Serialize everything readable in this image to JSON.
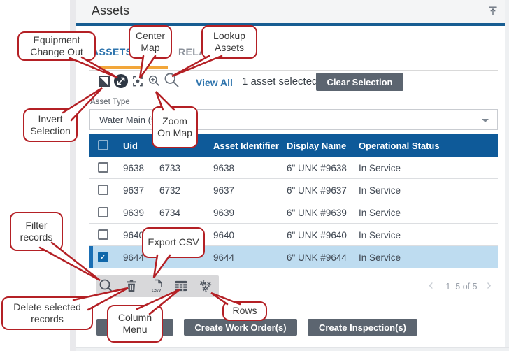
{
  "panel": {
    "title": "Assets"
  },
  "tabs": [
    {
      "label": "ASSETS"
    },
    {
      "label": "RELATED"
    }
  ],
  "toolbar": {
    "icons": [
      "invert-selection",
      "equipment-change-out",
      "center-map",
      "zoom-on-map",
      "lookup-assets"
    ],
    "view_all_label": "View All",
    "selection_status": "1 asset selected",
    "clear_selection_label": "Clear Selection"
  },
  "asset_type": {
    "label": "Asset Type",
    "value": "Water Main (5)"
  },
  "table": {
    "columns": [
      "Uid",
      "",
      "Asset Identifier",
      "Display Name",
      "Operational Status"
    ],
    "check_glyph": "✓",
    "rows": [
      {
        "uid": "9638",
        "col2": "6733",
        "asset_identifier": "9638",
        "display_name": "6\" UNK #9638",
        "status": "In Service",
        "checked": false,
        "selected": false
      },
      {
        "uid": "9637",
        "col2": "6732",
        "asset_identifier": "9637",
        "display_name": "6\" UNK #9637",
        "status": "In Service",
        "checked": false,
        "selected": false
      },
      {
        "uid": "9639",
        "col2": "6734",
        "asset_identifier": "9639",
        "display_name": "6\" UNK #9639",
        "status": "In Service",
        "checked": false,
        "selected": false
      },
      {
        "uid": "9640",
        "col2": "",
        "asset_identifier": "9640",
        "display_name": "6\" UNK #9640",
        "status": "In Service",
        "checked": false,
        "selected": false
      },
      {
        "uid": "9644",
        "col2": "",
        "asset_identifier": "9644",
        "display_name": "6\" UNK #9644",
        "status": "In Service",
        "checked": true,
        "selected": true
      }
    ]
  },
  "footer_toolbar": {
    "icons": [
      "filter-records",
      "delete-selected-records",
      "export-csv",
      "column-menu",
      "rows-settings"
    ]
  },
  "pagination": {
    "prev": "‹",
    "range_text": "1–5 of 5",
    "next": "›"
  },
  "action_buttons": [
    {
      "label": ""
    },
    {
      "label": "Create Work Order(s)"
    },
    {
      "label": "Create Inspection(s)"
    }
  ],
  "callouts": [
    {
      "id": "equipment-change-out",
      "text": "Equipment Change Out"
    },
    {
      "id": "center-map",
      "text": "Center Map"
    },
    {
      "id": "lookup-assets",
      "text": "Lookup Assets"
    },
    {
      "id": "invert-selection",
      "text": "Invert Selection"
    },
    {
      "id": "zoom-on-map",
      "text": "Zoom On Map"
    },
    {
      "id": "filter-records",
      "text": "Filter records"
    },
    {
      "id": "export-csv",
      "text": "Export CSV"
    },
    {
      "id": "delete-selected-records",
      "text": "Delete selected records"
    },
    {
      "id": "column-menu",
      "text": "Column Menu"
    },
    {
      "id": "rows",
      "text": "Rows"
    }
  ],
  "colors": {
    "header_blue": "#0e5a99",
    "selected_row": "#bedcf0",
    "selected_bar": "#1a6fb5",
    "callout_red": "#b42025",
    "tab_active_underline": "#f2a63a",
    "link_blue": "#2e74ad",
    "button_gray": "#5c6570",
    "title_rule_blue": "#175d92"
  }
}
